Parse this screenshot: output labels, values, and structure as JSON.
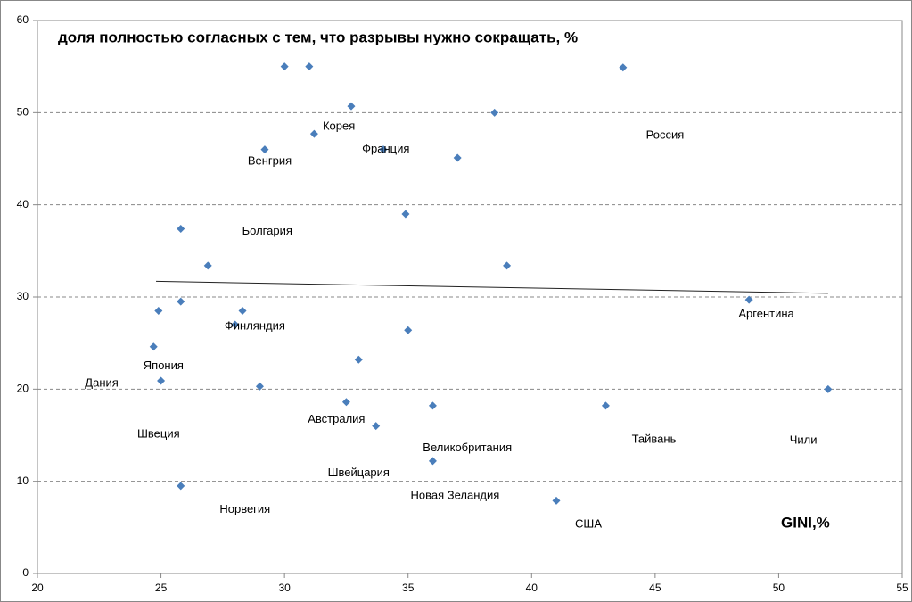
{
  "chart_data": {
    "type": "scatter",
    "title": "доля полностью согласных с тем, что разрывы нужно сокращать, %",
    "x_label": "GINI,%",
    "color": "#4a7ebb",
    "grid": true,
    "xlim": [
      20,
      55
    ],
    "xticks": [
      20,
      25,
      30,
      35,
      40,
      45,
      50,
      55
    ],
    "ylim": [
      0,
      60
    ],
    "yticks": [
      0,
      10,
      20,
      30,
      40,
      50,
      60
    ],
    "x": [
      30,
      31,
      43.7,
      32.7,
      38.5,
      31.2,
      29.2,
      34.0,
      37.0,
      34.9,
      25.8,
      26.9,
      39.0,
      25.8,
      24.9,
      28.3,
      48.8,
      28.0,
      35.0,
      24.7,
      33.0,
      25.0,
      29.0,
      52.0,
      32.5,
      36.0,
      43.0,
      33.7,
      36.0,
      25.8,
      41.0
    ],
    "values": [
      55,
      55,
      54.9,
      50.7,
      50.0,
      47.7,
      46.0,
      46.0,
      45.1,
      39.0,
      37.4,
      33.4,
      33.4,
      29.5,
      28.5,
      28.5,
      29.7,
      27.0,
      26.4,
      24.6,
      23.2,
      20.9,
      20.3,
      20.0,
      18.6,
      18.2,
      18.2,
      16.0,
      12.2,
      9.5,
      7.9
    ],
    "trendline": {
      "x": [
        24.8,
        52
      ],
      "y": [
        31.7,
        30.4
      ]
    },
    "annotations": [
      {
        "text": "Корея",
        "x": 32.2,
        "y": 48.5
      },
      {
        "text": "Венгрия",
        "x": 29.4,
        "y": 44.7
      },
      {
        "text": "Франция",
        "x": 34.1,
        "y": 46.0
      },
      {
        "text": "Россия",
        "x": 45.4,
        "y": 47.5
      },
      {
        "text": "Болгария",
        "x": 29.3,
        "y": 37.1
      },
      {
        "text": "Аргентина",
        "x": 49.5,
        "y": 28.1
      },
      {
        "text": "Финляндия",
        "x": 28.8,
        "y": 26.8
      },
      {
        "text": "Япония",
        "x": 25.1,
        "y": 22.5
      },
      {
        "text": "Дания",
        "x": 22.6,
        "y": 20.6
      },
      {
        "text": "Швеция",
        "x": 24.9,
        "y": 15.1
      },
      {
        "text": "Австралия",
        "x": 32.1,
        "y": 16.7
      },
      {
        "text": "Великобритания",
        "x": 37.4,
        "y": 13.6
      },
      {
        "text": "Тайвань",
        "x": 44.95,
        "y": 14.5
      },
      {
        "text": "Чили",
        "x": 51.0,
        "y": 14.4
      },
      {
        "text": "Швейцария",
        "x": 33.0,
        "y": 10.9
      },
      {
        "text": "Новая Зеландия",
        "x": 36.9,
        "y": 8.4
      },
      {
        "text": "Норвегия",
        "x": 28.4,
        "y": 6.9
      },
      {
        "text": "США",
        "x": 42.3,
        "y": 5.3
      }
    ]
  }
}
